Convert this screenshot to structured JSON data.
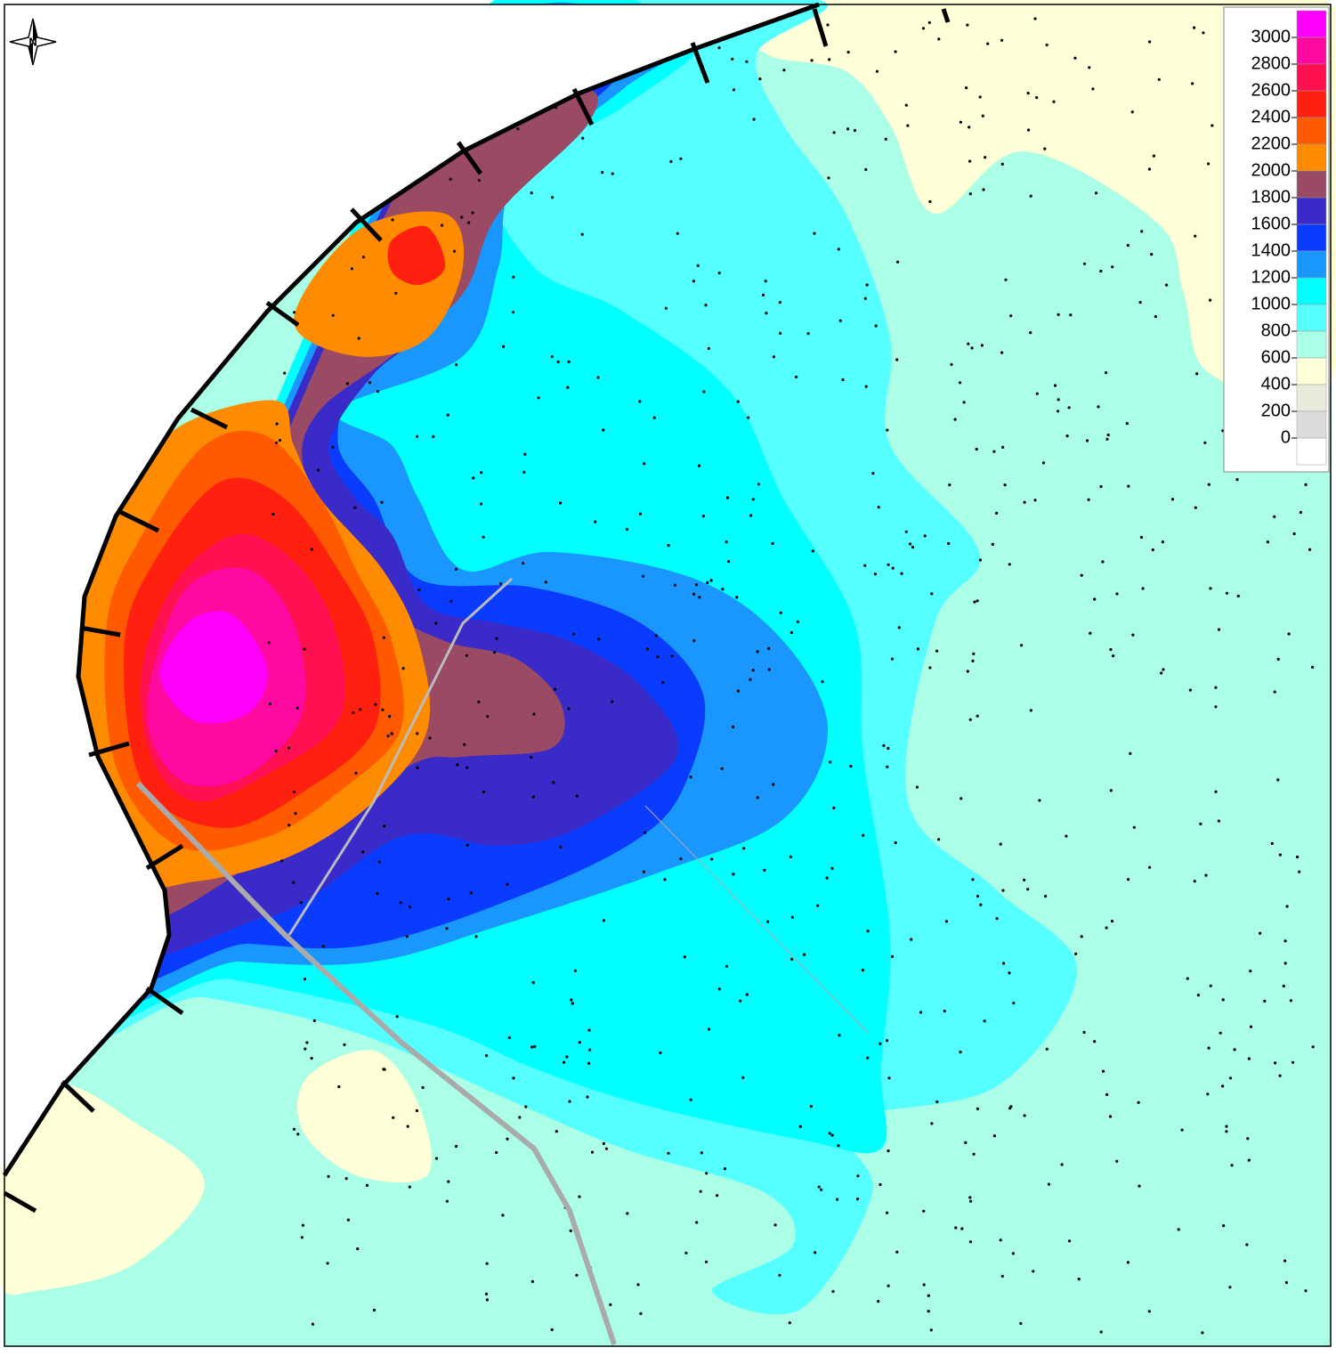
{
  "north_label": "N",
  "legend": {
    "levels": [
      3000,
      2800,
      2600,
      2400,
      2200,
      2000,
      1800,
      1600,
      1400,
      1200,
      1000,
      800,
      600,
      400,
      200,
      0
    ],
    "colors": [
      "#ff00ff",
      "#ff0aa0",
      "#ff1050",
      "#ff2010",
      "#ff5a00",
      "#ff8c00",
      "#9a4a62",
      "#3a2ac8",
      "#0a3cff",
      "#1a96ff",
      "#00ffff",
      "#55ffff",
      "#aaffe6",
      "#ffffd8",
      "#eaeadc",
      "#dcdcdc",
      "#ffffff"
    ]
  }
}
